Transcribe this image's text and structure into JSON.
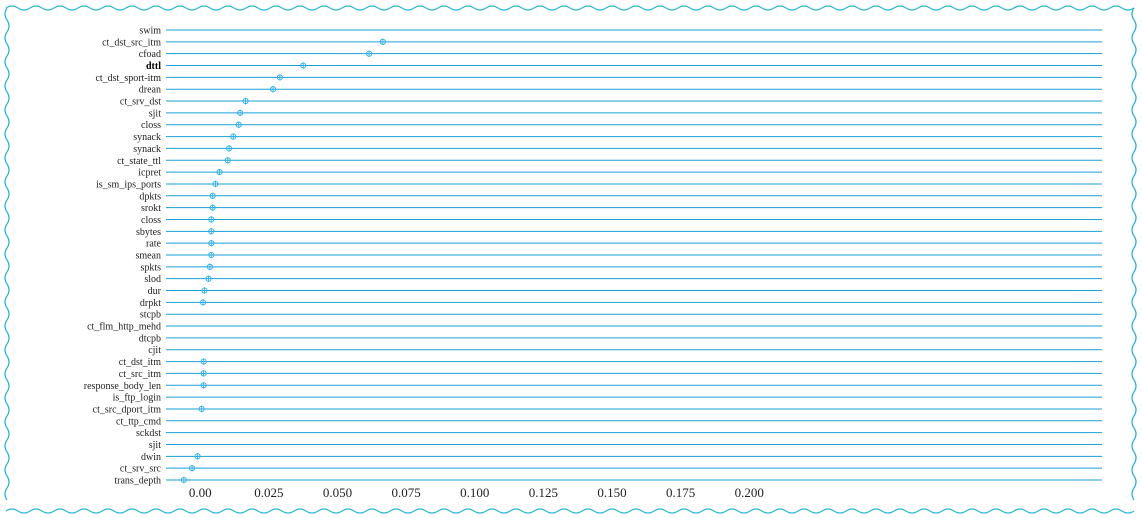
{
  "chart_data": {
    "type": "scatter",
    "orientation": "horizontal",
    "title": "",
    "xlabel": "",
    "ylabel": "",
    "xlim": [
      -0.0125,
      0.3285
    ],
    "x_ticks": [
      0.0,
      0.025,
      0.05,
      0.075,
      0.1,
      0.125,
      0.15,
      0.175,
      0.2
    ],
    "x_tick_labels": [
      "0.00",
      "0.025",
      "0.050",
      "0.075",
      "0.100",
      "0.125",
      "0.150",
      "0.175",
      "0.200"
    ],
    "grid": "horizontal lines per category",
    "colors": {
      "line": "#1a9fd6",
      "marker": "#2ab0e8",
      "border": "#29b6d9"
    },
    "bold_categories": [
      "dttl"
    ],
    "categories": [
      "swim",
      "ct_dst_src_itm",
      "cfoad",
      "dttl",
      "ct_dst_sport-itm",
      "drean",
      "ct_srv_dst",
      "sjit",
      "closs",
      "synack",
      "synack",
      "ct_state_ttl",
      "icpret",
      "is_sm_ips_ports",
      "dpkts",
      "srokt",
      "closs",
      "sbytes",
      "rate",
      "smean",
      "spkts",
      "slod",
      "dur",
      "drpkt",
      "stcpb",
      "ct_flm_http_mehd",
      "dtcpb",
      "cjit",
      "ct_dst_itm",
      "ct_src_itm",
      "response_body_len",
      "is_ftp_login",
      "ct_src_dport_itm",
      "ct_ttp_cmd",
      "sckdst",
      "sjit",
      "dwin",
      "ct_srv_src",
      "trans_depth"
    ],
    "values": [
      null,
      0.0665,
      0.0615,
      0.0375,
      0.029,
      0.0265,
      0.0165,
      0.0145,
      0.014,
      0.012,
      0.0105,
      0.01,
      0.007,
      0.0055,
      0.0045,
      0.0045,
      0.004,
      0.004,
      0.004,
      0.004,
      0.0035,
      0.003,
      0.0015,
      0.001,
      null,
      null,
      null,
      null,
      0.0012,
      0.0012,
      0.0012,
      null,
      0.0005,
      null,
      null,
      null,
      -0.001,
      -0.003,
      -0.006
    ]
  }
}
